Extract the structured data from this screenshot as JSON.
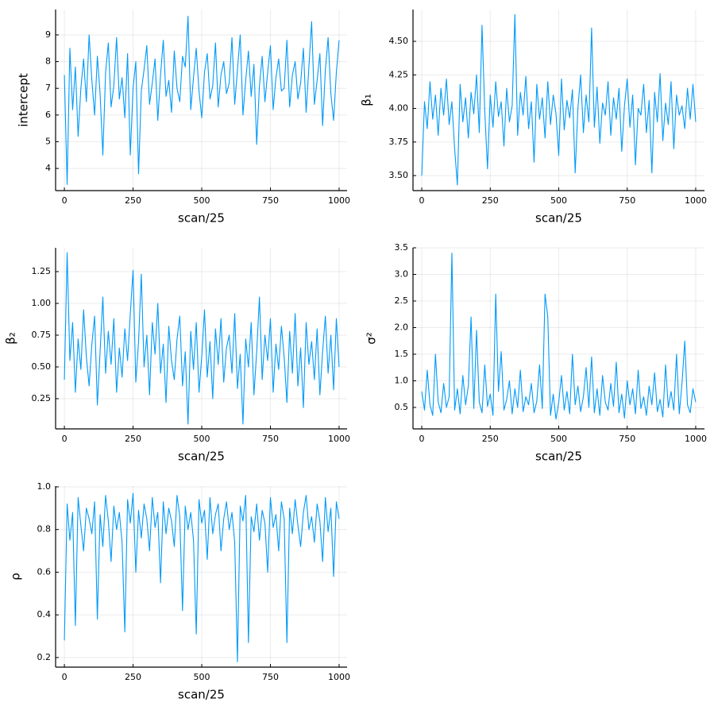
{
  "chart_data": [
    {
      "type": "line",
      "x_label": "scan/25",
      "y_label": "intercept",
      "color": "#009af9",
      "grid": true,
      "xlim": [
        -32,
        1029
      ],
      "ylim": [
        3.17,
        9.95
      ],
      "xticks": [
        0,
        250,
        500,
        750,
        1000
      ],
      "yticks": [
        4,
        5,
        6,
        7,
        8,
        9
      ],
      "x": [
        0,
        10,
        20,
        30,
        40,
        50,
        60,
        70,
        80,
        90,
        100,
        110,
        120,
        130,
        140,
        150,
        160,
        170,
        180,
        190,
        200,
        210,
        220,
        230,
        240,
        250,
        260,
        270,
        280,
        290,
        300,
        310,
        320,
        330,
        340,
        350,
        360,
        370,
        380,
        390,
        400,
        410,
        420,
        430,
        440,
        450,
        460,
        470,
        480,
        490,
        500,
        510,
        520,
        530,
        540,
        550,
        560,
        570,
        580,
        590,
        600,
        610,
        620,
        630,
        640,
        650,
        660,
        670,
        680,
        690,
        700,
        710,
        720,
        730,
        740,
        750,
        760,
        770,
        780,
        790,
        800,
        810,
        820,
        830,
        840,
        850,
        860,
        870,
        880,
        890,
        900,
        910,
        920,
        930,
        940,
        950,
        960,
        970,
        980,
        990,
        1000
      ],
      "values": [
        7.5,
        3.4,
        8.5,
        6.2,
        7.8,
        5.2,
        7.0,
        8.1,
        6.5,
        9.0,
        7.3,
        6.0,
        8.2,
        6.8,
        4.5,
        7.6,
        8.7,
        6.3,
        7.1,
        8.9,
        6.6,
        7.4,
        5.9,
        8.3,
        4.5,
        7.0,
        8.0,
        3.8,
        6.9,
        7.7,
        8.6,
        6.4,
        7.2,
        8.1,
        5.8,
        7.5,
        8.8,
        6.7,
        7.3,
        6.1,
        8.4,
        7.0,
        6.5,
        8.2,
        7.8,
        9.7,
        6.2,
        7.4,
        8.5,
        6.9,
        5.9,
        7.6,
        8.3,
        6.6,
        7.1,
        8.7,
        6.3,
        7.5,
        8.0,
        6.8,
        7.2,
        8.9,
        6.4,
        7.7,
        9.0,
        6.0,
        7.3,
        8.4,
        6.7,
        7.9,
        4.9,
        7.1,
        8.2,
        6.5,
        7.6,
        8.6,
        6.2,
        7.4,
        8.1,
        6.9,
        7.0,
        8.8,
        6.3,
        7.5,
        8.0,
        6.6,
        7.2,
        8.5,
        6.1,
        7.8,
        9.5,
        6.4,
        7.3,
        8.3,
        5.6,
        7.7,
        8.9,
        6.8,
        5.8,
        7.6,
        8.8
      ]
    },
    {
      "type": "line",
      "x_label": "scan/25",
      "y_label": "β₁",
      "color": "#009af9",
      "grid": true,
      "xlim": [
        -32,
        1032
      ],
      "ylim": [
        3.388,
        4.737
      ],
      "xticks": [
        0,
        250,
        500,
        750,
        1000
      ],
      "yticks": [
        {
          "value": 3.5,
          "label": "3.50"
        },
        3.75,
        {
          "value": 4,
          "label": "4.00"
        },
        4.25,
        {
          "value": 4.5,
          "label": "4.50"
        }
      ],
      "x": [
        0,
        10,
        20,
        30,
        40,
        50,
        60,
        70,
        80,
        90,
        100,
        110,
        120,
        130,
        140,
        150,
        160,
        170,
        180,
        190,
        200,
        210,
        220,
        230,
        240,
        250,
        260,
        270,
        280,
        290,
        300,
        310,
        320,
        330,
        340,
        350,
        360,
        370,
        380,
        390,
        400,
        410,
        420,
        430,
        440,
        450,
        460,
        470,
        480,
        490,
        500,
        510,
        520,
        530,
        540,
        550,
        560,
        570,
        580,
        590,
        600,
        610,
        620,
        630,
        640,
        650,
        660,
        670,
        680,
        690,
        700,
        710,
        720,
        730,
        740,
        750,
        760,
        770,
        780,
        790,
        800,
        810,
        820,
        830,
        840,
        850,
        860,
        870,
        880,
        890,
        900,
        910,
        920,
        930,
        940,
        950,
        960,
        970,
        980,
        990,
        1000
      ],
      "values": [
        3.5,
        4.05,
        3.85,
        4.2,
        3.92,
        4.1,
        3.8,
        4.15,
        3.95,
        4.22,
        3.88,
        4.05,
        3.7,
        3.43,
        4.18,
        3.9,
        4.08,
        3.78,
        4.12,
        3.96,
        4.25,
        3.82,
        4.62,
        3.98,
        3.55,
        4.1,
        3.86,
        4.2,
        3.94,
        4.05,
        3.72,
        4.15,
        3.9,
        4.02,
        4.7,
        3.8,
        4.12,
        3.95,
        4.24,
        3.85,
        4.05,
        3.6,
        4.18,
        3.92,
        4.08,
        3.78,
        4.2,
        3.88,
        4.1,
        3.96,
        3.65,
        4.22,
        3.84,
        4.06,
        3.93,
        4.14,
        3.52,
        4.0,
        4.25,
        3.82,
        4.1,
        3.9,
        4.6,
        3.86,
        4.16,
        3.74,
        4.04,
        3.95,
        4.2,
        3.8,
        4.08,
        3.92,
        4.15,
        3.68,
        4.02,
        4.22,
        3.86,
        4.1,
        3.58,
        4.0,
        3.95,
        4.18,
        3.82,
        4.06,
        3.52,
        4.12,
        3.9,
        4.26,
        3.76,
        4.04,
        3.88,
        4.2,
        3.7,
        4.1,
        3.95,
        4.02,
        3.85,
        4.15,
        3.92,
        4.18,
        3.9
      ]
    },
    {
      "type": "line",
      "x_label": "scan/25",
      "y_label": "β₂",
      "color": "#009af9",
      "grid": true,
      "xlim": [
        -32,
        1029
      ],
      "ylim": [
        0.0125,
        1.4375
      ],
      "xticks": [
        0,
        250,
        500,
        750,
        1000
      ],
      "yticks": [
        0.25,
        {
          "value": 0.5,
          "label": "0.50"
        },
        0.75,
        {
          "value": 1,
          "label": "1.00"
        },
        1.25
      ],
      "x": [
        0,
        10,
        20,
        30,
        40,
        50,
        60,
        70,
        80,
        90,
        100,
        110,
        120,
        130,
        140,
        150,
        160,
        170,
        180,
        190,
        200,
        210,
        220,
        230,
        240,
        250,
        260,
        270,
        280,
        290,
        300,
        310,
        320,
        330,
        340,
        350,
        360,
        370,
        380,
        390,
        400,
        410,
        420,
        430,
        440,
        450,
        460,
        470,
        480,
        490,
        500,
        510,
        520,
        530,
        540,
        550,
        560,
        570,
        580,
        590,
        600,
        610,
        620,
        630,
        640,
        650,
        660,
        670,
        680,
        690,
        700,
        710,
        720,
        730,
        740,
        750,
        760,
        770,
        780,
        790,
        800,
        810,
        820,
        830,
        840,
        850,
        860,
        870,
        880,
        890,
        900,
        910,
        920,
        930,
        940,
        950,
        960,
        970,
        980,
        990,
        1000
      ],
      "values": [
        0.4,
        1.4,
        0.55,
        0.85,
        0.3,
        0.72,
        0.48,
        0.95,
        0.58,
        0.35,
        0.68,
        0.9,
        0.2,
        0.62,
        1.05,
        0.45,
        0.78,
        0.52,
        0.88,
        0.3,
        0.65,
        0.42,
        0.8,
        0.55,
        0.92,
        1.26,
        0.38,
        0.7,
        1.23,
        0.5,
        0.75,
        0.28,
        0.85,
        0.6,
        1.0,
        0.45,
        0.68,
        0.22,
        0.82,
        0.55,
        0.4,
        0.72,
        0.9,
        0.35,
        0.62,
        0.05,
        0.78,
        0.48,
        0.85,
        0.3,
        0.58,
        0.95,
        0.42,
        0.7,
        0.25,
        0.8,
        0.52,
        0.88,
        0.38,
        0.65,
        0.75,
        0.45,
        0.92,
        0.33,
        0.6,
        0.05,
        0.72,
        0.5,
        0.85,
        0.28,
        0.62,
        1.05,
        0.4,
        0.75,
        0.55,
        0.88,
        0.3,
        0.68,
        0.48,
        0.82,
        0.58,
        0.22,
        0.78,
        0.45,
        0.92,
        0.35,
        0.65,
        0.18,
        0.85,
        0.52,
        0.7,
        0.4,
        0.8,
        0.28,
        0.62,
        0.9,
        0.45,
        0.75,
        0.32,
        0.88,
        0.5
      ]
    },
    {
      "type": "line",
      "x_label": "scan/25",
      "y_label": "σ²",
      "color": "#009af9",
      "grid": true,
      "xlim": [
        -32,
        1032
      ],
      "ylim": [
        0.097,
        3.5
      ],
      "xticks": [
        0,
        250,
        500,
        750,
        1000
      ],
      "yticks": [
        0.5,
        {
          "value": 1,
          "label": "1.0"
        },
        1.5,
        {
          "value": 2,
          "label": "2.0"
        },
        2.5,
        {
          "value": 3,
          "label": "3.0"
        },
        3.5
      ],
      "x": [
        0,
        10,
        20,
        30,
        40,
        50,
        60,
        70,
        80,
        90,
        100,
        110,
        120,
        130,
        140,
        150,
        160,
        170,
        180,
        190,
        200,
        210,
        220,
        230,
        240,
        250,
        260,
        270,
        280,
        290,
        300,
        310,
        320,
        330,
        340,
        350,
        360,
        370,
        380,
        390,
        400,
        410,
        420,
        430,
        440,
        450,
        460,
        470,
        480,
        490,
        500,
        510,
        520,
        530,
        540,
        550,
        560,
        570,
        580,
        590,
        600,
        610,
        620,
        630,
        640,
        650,
        660,
        670,
        680,
        690,
        700,
        710,
        720,
        730,
        740,
        750,
        760,
        770,
        780,
        790,
        800,
        810,
        820,
        830,
        840,
        850,
        860,
        870,
        880,
        890,
        900,
        910,
        920,
        930,
        940,
        950,
        960,
        970,
        980,
        990,
        1000
      ],
      "values": [
        0.8,
        0.45,
        1.2,
        0.55,
        0.35,
        1.5,
        0.6,
        0.4,
        0.95,
        0.5,
        0.7,
        3.4,
        0.45,
        0.85,
        0.38,
        1.1,
        0.55,
        0.9,
        2.2,
        0.48,
        1.95,
        0.6,
        0.4,
        1.3,
        0.52,
        0.75,
        0.35,
        2.63,
        0.8,
        1.55,
        0.45,
        0.65,
        1.0,
        0.38,
        0.85,
        0.5,
        1.2,
        0.42,
        0.7,
        0.55,
        0.95,
        0.4,
        0.62,
        1.3,
        0.48,
        2.63,
        2.2,
        0.35,
        0.75,
        0.28,
        0.6,
        1.1,
        0.45,
        0.8,
        0.38,
        1.5,
        0.55,
        0.9,
        0.42,
        0.7,
        1.25,
        0.5,
        1.45,
        0.4,
        0.85,
        0.35,
        1.1,
        0.6,
        0.45,
        0.95,
        0.52,
        1.35,
        0.4,
        0.75,
        0.3,
        1.0,
        0.55,
        0.85,
        0.38,
        1.2,
        0.48,
        0.7,
        0.35,
        0.9,
        0.55,
        1.15,
        0.42,
        0.65,
        0.32,
        1.3,
        0.5,
        0.8,
        0.45,
        1.5,
        0.38,
        0.95,
        1.75,
        0.55,
        0.4,
        0.85,
        0.6
      ]
    },
    {
      "type": "line",
      "x_label": "scan/25",
      "y_label": "ρ",
      "color": "#009af9",
      "grid": true,
      "xlim": [
        -32,
        1029
      ],
      "ylim": [
        0.155,
        1.0037
      ],
      "xticks": [
        0,
        250,
        500,
        750,
        1000
      ],
      "yticks": [
        0.2,
        0.4,
        0.6,
        0.8,
        {
          "value": 1,
          "label": "1.0"
        }
      ],
      "x": [
        0,
        10,
        20,
        30,
        40,
        50,
        60,
        70,
        80,
        90,
        100,
        110,
        120,
        130,
        140,
        150,
        160,
        170,
        180,
        190,
        200,
        210,
        220,
        230,
        240,
        250,
        260,
        270,
        280,
        290,
        300,
        310,
        320,
        330,
        340,
        350,
        360,
        370,
        380,
        390,
        400,
        410,
        420,
        430,
        440,
        450,
        460,
        470,
        480,
        490,
        500,
        510,
        520,
        530,
        540,
        550,
        560,
        570,
        580,
        590,
        600,
        610,
        620,
        630,
        640,
        650,
        660,
        670,
        680,
        690,
        700,
        710,
        720,
        730,
        740,
        750,
        760,
        770,
        780,
        790,
        800,
        810,
        820,
        830,
        840,
        850,
        860,
        870,
        880,
        890,
        900,
        910,
        920,
        930,
        940,
        950,
        960,
        970,
        980,
        990,
        1000
      ],
      "values": [
        0.28,
        0.92,
        0.75,
        0.88,
        0.35,
        0.95,
        0.82,
        0.7,
        0.9,
        0.85,
        0.78,
        0.93,
        0.38,
        0.87,
        0.72,
        0.96,
        0.84,
        0.65,
        0.91,
        0.8,
        0.88,
        0.74,
        0.32,
        0.94,
        0.83,
        0.97,
        0.6,
        0.89,
        0.76,
        0.92,
        0.85,
        0.7,
        0.95,
        0.81,
        0.88,
        0.55,
        0.93,
        0.78,
        0.9,
        0.84,
        0.72,
        0.96,
        0.86,
        0.42,
        0.91,
        0.8,
        0.88,
        0.75,
        0.31,
        0.94,
        0.83,
        0.89,
        0.66,
        0.95,
        0.78,
        0.87,
        0.92,
        0.7,
        0.85,
        0.93,
        0.8,
        0.88,
        0.74,
        0.18,
        0.91,
        0.84,
        0.96,
        0.27,
        0.86,
        0.79,
        0.92,
        0.75,
        0.89,
        0.83,
        0.6,
        0.95,
        0.81,
        0.87,
        0.7,
        0.93,
        0.85,
        0.27,
        0.9,
        0.78,
        0.94,
        0.82,
        0.72,
        0.88,
        0.96,
        0.8,
        0.86,
        0.74,
        0.92,
        0.84,
        0.65,
        0.95,
        0.79,
        0.9,
        0.58,
        0.93,
        0.85
      ]
    }
  ]
}
